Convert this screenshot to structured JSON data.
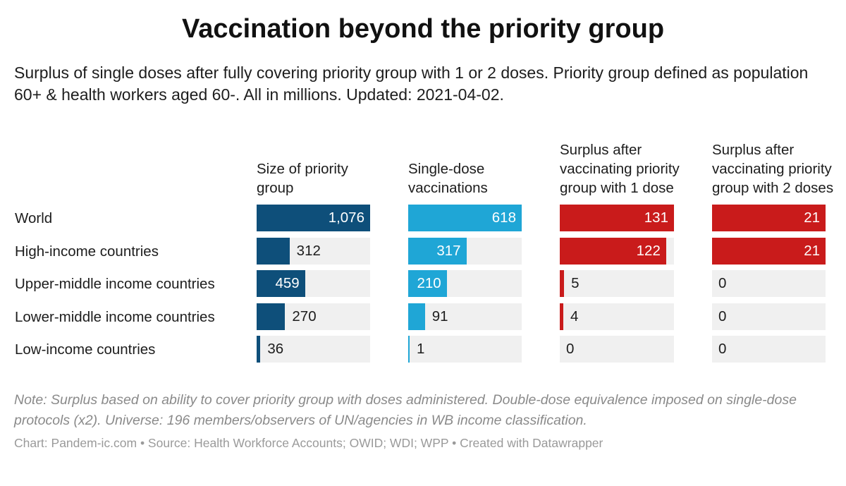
{
  "title": "Vaccination beyond the priority group",
  "subtitle": "Surplus of single doses after fully covering priority group with 1 or 2 doses. Priority group defined as population 60+ & health workers aged 60-. All in millions. Updated: 2021-04-02.",
  "note": "Note: Surplus based on ability to cover priority group with doses administered. Double-dose equivalence imposed on single-dose protocols (x2). Universe: 196 members/observers of UN/agencies in WB income classification.",
  "credit": "Chart: Pandem-ic.com • Source: Health Workforce Accounts; OWID; WDI; WPP • Created with Datawrapper",
  "chart_data": {
    "type": "bar",
    "units": "millions",
    "categories": [
      "World",
      "High-income countries",
      "Upper-middle income countries",
      "Lower-middle income countries",
      "Low-income countries"
    ],
    "series": [
      {
        "name": "Size of priority group",
        "header": "Size of priority group",
        "color": "#0e4f7a",
        "max": 1076,
        "values": [
          1076,
          312,
          459,
          270,
          36
        ],
        "labels": [
          "1,076",
          "312",
          "459",
          "270",
          "36"
        ]
      },
      {
        "name": "Single-dose vaccinations",
        "header": "Single-dose vaccinations",
        "color": "#1fa6d6",
        "max": 618,
        "values": [
          618,
          317,
          210,
          91,
          1
        ],
        "labels": [
          "618",
          "317",
          "210",
          "91",
          "1"
        ]
      },
      {
        "name": "Surplus after vaccinating priority group with 1 dose",
        "header": "Surplus after vaccinating priority group with 1 dose",
        "color": "#c91b1b",
        "max": 131,
        "values": [
          131,
          122,
          5,
          4,
          0
        ],
        "labels": [
          "131",
          "122",
          "5",
          "4",
          "0"
        ]
      },
      {
        "name": "Surplus after vaccinating priority group with 2 doses",
        "header": "Surplus after vaccinating priority group with 2 doses",
        "color": "#c91b1b",
        "max": 21,
        "values": [
          21,
          21,
          0,
          0,
          0
        ],
        "labels": [
          "21",
          "21",
          "0",
          "0",
          "0"
        ]
      }
    ]
  }
}
